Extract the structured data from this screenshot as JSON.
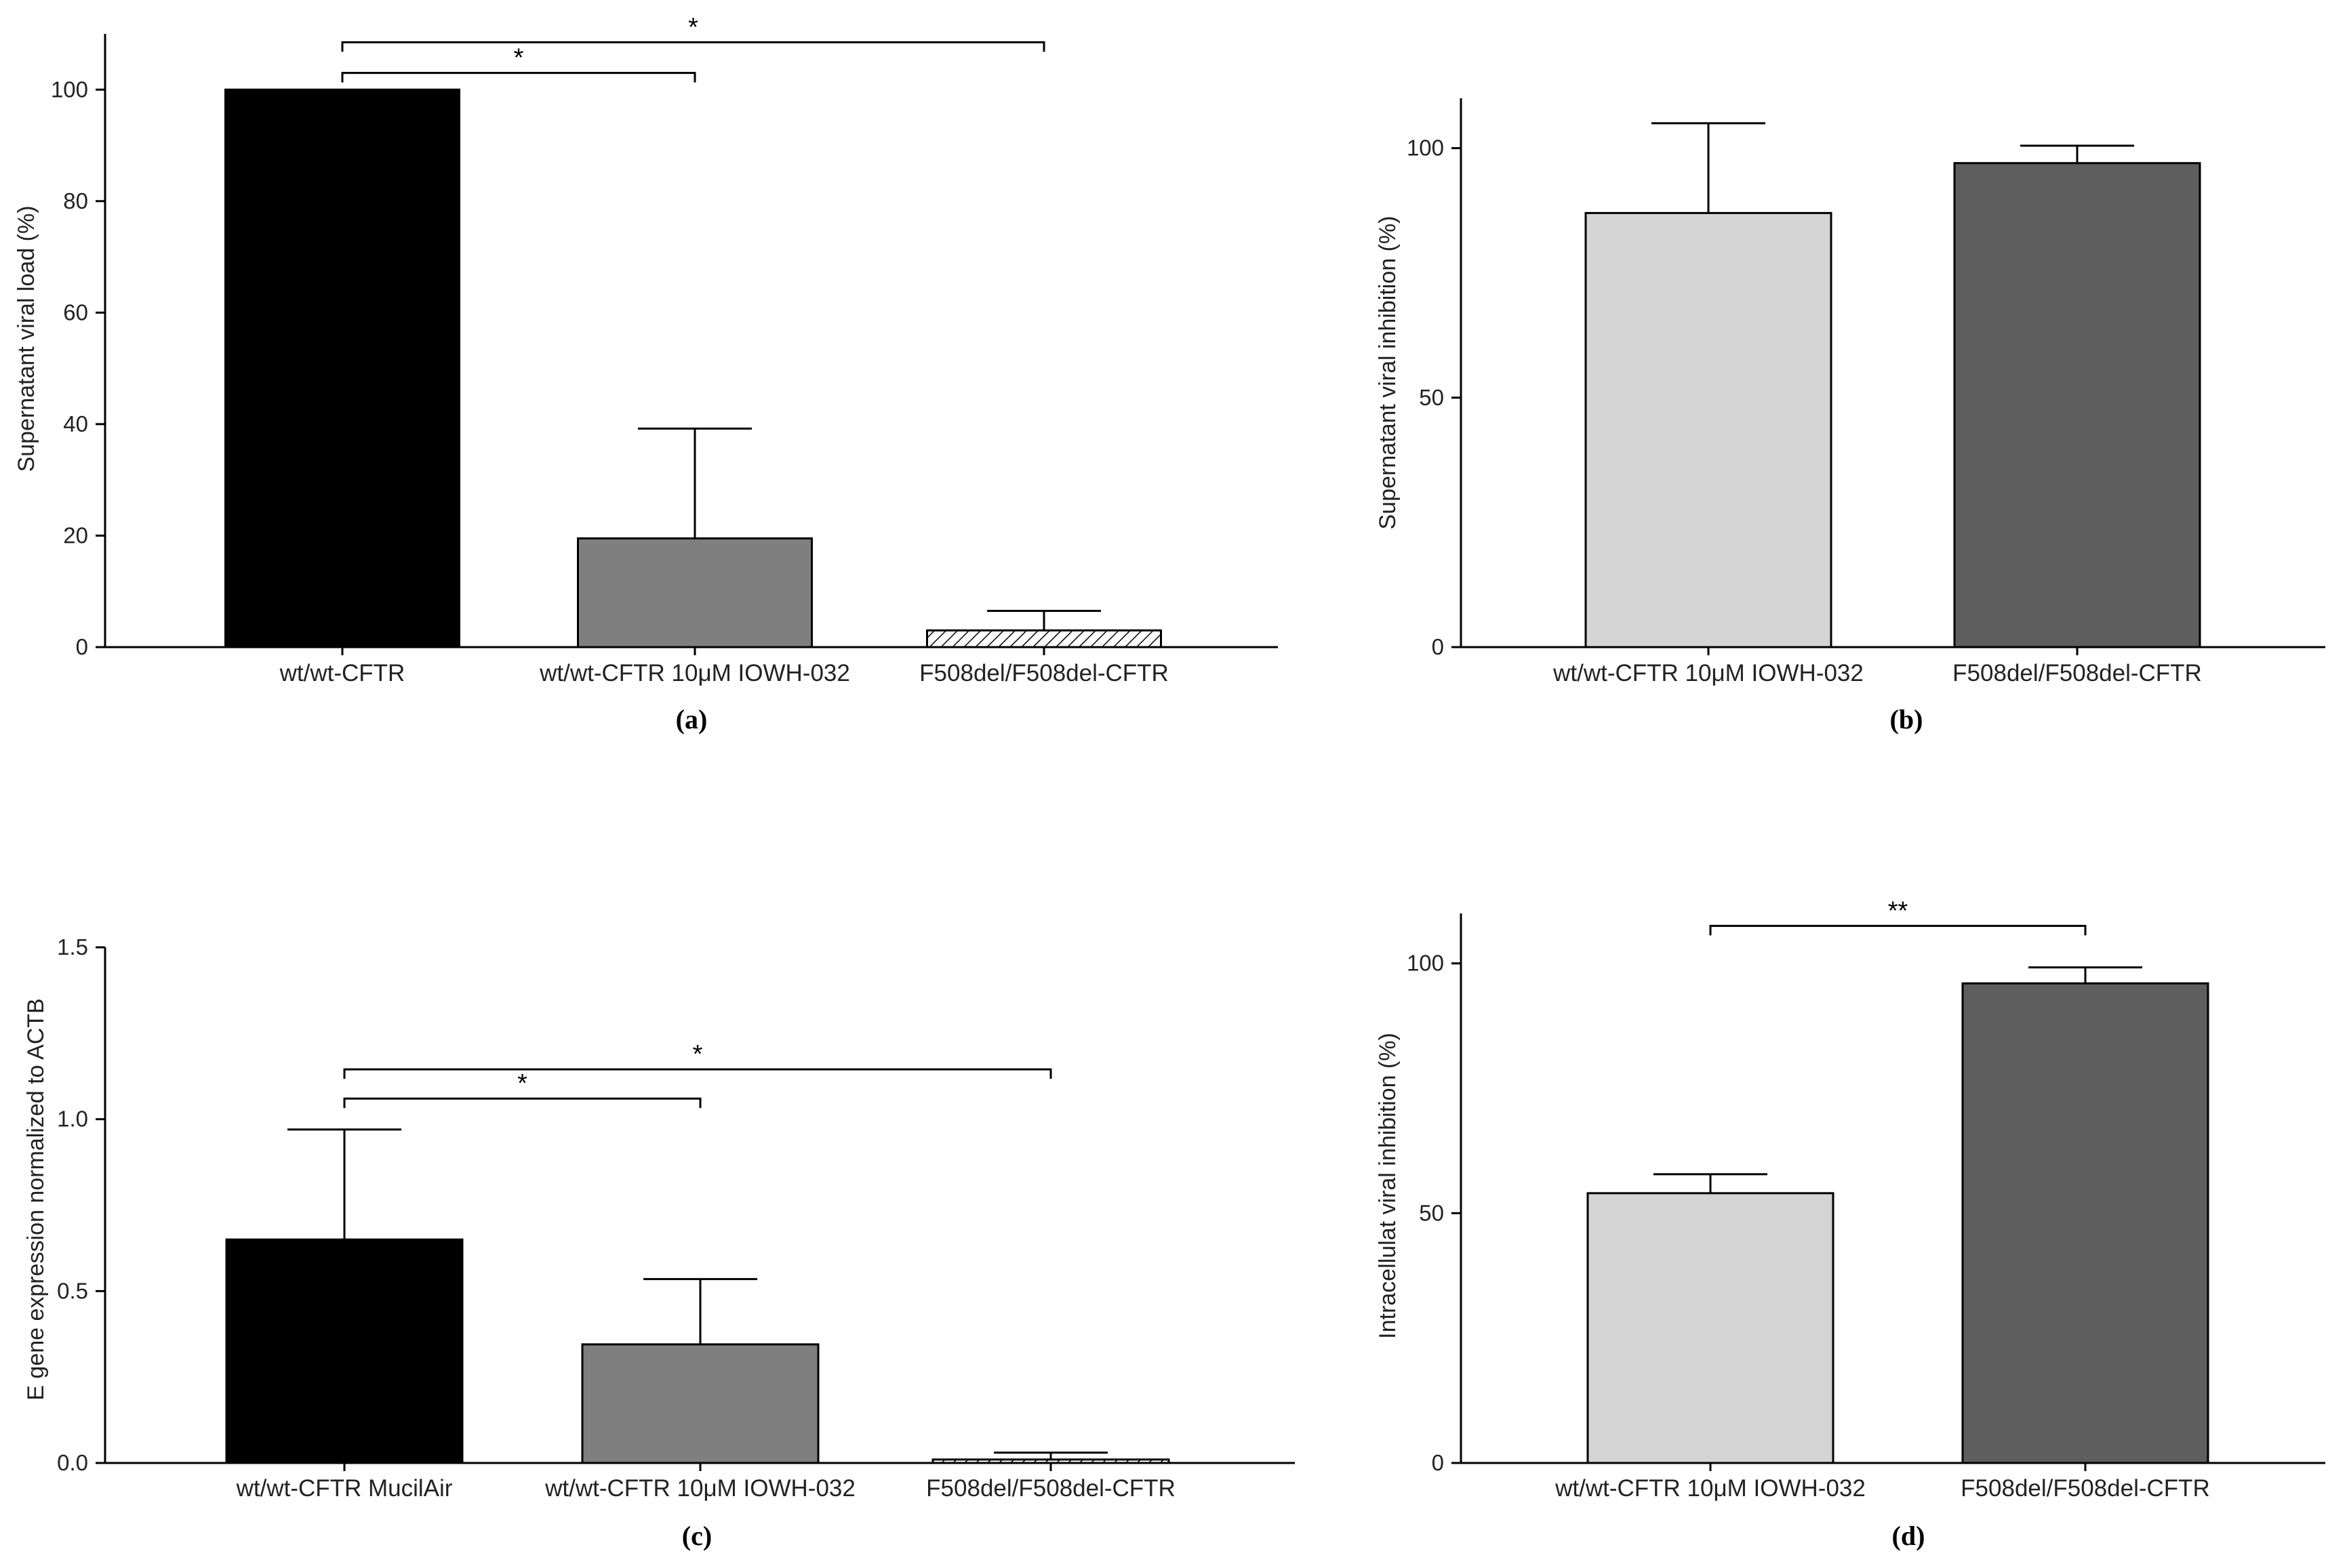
{
  "chart_data": [
    {
      "id": "a",
      "type": "bar",
      "panel_label": "(a)",
      "ylabel": "Supernatant viral load (%)",
      "ylim": [
        0,
        110
      ],
      "yticks": [
        0,
        20,
        40,
        60,
        80,
        100
      ],
      "categories": [
        "wt/wt-CFTR",
        "wt/wt-CFTR 10μM IOWH-032",
        "F508del/F508del-CFTR"
      ],
      "values": [
        100,
        19.5,
        3
      ],
      "errors": [
        0,
        19.7,
        3.5
      ],
      "fills": [
        "#000000",
        "#7f7f7f",
        "hatch"
      ],
      "significance": [
        {
          "from": 0,
          "to": 1,
          "label": "*",
          "y": 103
        },
        {
          "from": 0,
          "to": 2,
          "label": "*",
          "y": 108.5
        }
      ]
    },
    {
      "id": "b",
      "type": "bar",
      "panel_label": "(b)",
      "ylabel": "Supernatant viral inhibition (%)",
      "ylim": [
        0,
        110
      ],
      "yticks": [
        0,
        50,
        100
      ],
      "categories": [
        "wt/wt-CFTR 10μM IOWH-032",
        "F508del/F508del-CFTR"
      ],
      "values": [
        87,
        97
      ],
      "errors": [
        18,
        3.5
      ],
      "fills": [
        "#d4d4d4",
        "#5e5e5e"
      ],
      "significance": []
    },
    {
      "id": "c",
      "type": "bar",
      "panel_label": "(c)",
      "ylabel": "E gene expression normalized to ACTB",
      "ylim": [
        0,
        1.5
      ],
      "yticks": [
        0.0,
        0.5,
        1.0,
        1.5
      ],
      "yticklabels": [
        "0.0",
        "0.5",
        "1.0",
        "1.5"
      ],
      "categories": [
        "wt/wt-CFTR MucilAir",
        "wt/wt-CFTR 10μM IOWH-032",
        "F508del/F508del-CFTR"
      ],
      "values": [
        0.65,
        0.345,
        0.01
      ],
      "errors": [
        0.32,
        0.19,
        0.02
      ],
      "fills": [
        "#000000",
        "#7f7f7f",
        "hatch"
      ],
      "significance": [
        {
          "from": 0,
          "to": 1,
          "label": "*",
          "y": 1.06
        },
        {
          "from": 0,
          "to": 2,
          "label": "*",
          "y": 1.145
        }
      ]
    },
    {
      "id": "d",
      "type": "bar",
      "panel_label": "(d)",
      "ylabel": "Intracellulat viral inhibition (%)",
      "ylim": [
        0,
        110
      ],
      "yticks": [
        0,
        50,
        100
      ],
      "categories": [
        "wt/wt-CFTR 10μM IOWH-032",
        "F508del/F508del-CFTR"
      ],
      "values": [
        54,
        96
      ],
      "errors": [
        3.8,
        3.2
      ],
      "fills": [
        "#d4d4d4",
        "#5e5e5e"
      ],
      "significance": [
        {
          "from": 0,
          "to": 1,
          "label": "**",
          "y": 107.5
        }
      ]
    }
  ]
}
